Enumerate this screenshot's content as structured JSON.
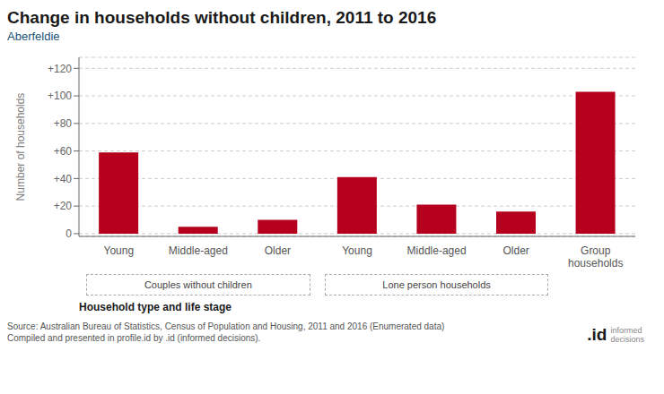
{
  "chart_data": {
    "type": "bar",
    "title": "Change in households without children, 2011 to 2016",
    "subtitle": "Aberfeldie",
    "categories": [
      "Young",
      "Middle-aged",
      "Older",
      "Young",
      "Middle-aged",
      "Older",
      "Group\nhouseholds"
    ],
    "values": [
      59,
      5,
      10,
      41,
      21,
      16,
      103
    ],
    "color": "#b5001e",
    "ylabel": "Number of households",
    "xlabel": "Household type and life stage",
    "ylim": [
      -2,
      128
    ],
    "yticks": [
      0,
      {
        "value": 20,
        "label": "+20"
      },
      {
        "value": 40,
        "label": "+40"
      },
      {
        "value": 60,
        "label": "+60"
      },
      {
        "value": 80,
        "label": "+80"
      },
      {
        "value": 100,
        "label": "+100"
      },
      {
        "value": 120,
        "label": "+120"
      }
    ],
    "grid": true,
    "annotations": [
      "Couples without children",
      "Lone person households",
      "Source: Australian Bureau of Statistics, Census of Population and Housing, 2011 and 2016 (Enumerated data)\nCompiled and presented in profile.id by .id (informed decisions).",
      ".id",
      "informed\ndecisions"
    ]
  }
}
